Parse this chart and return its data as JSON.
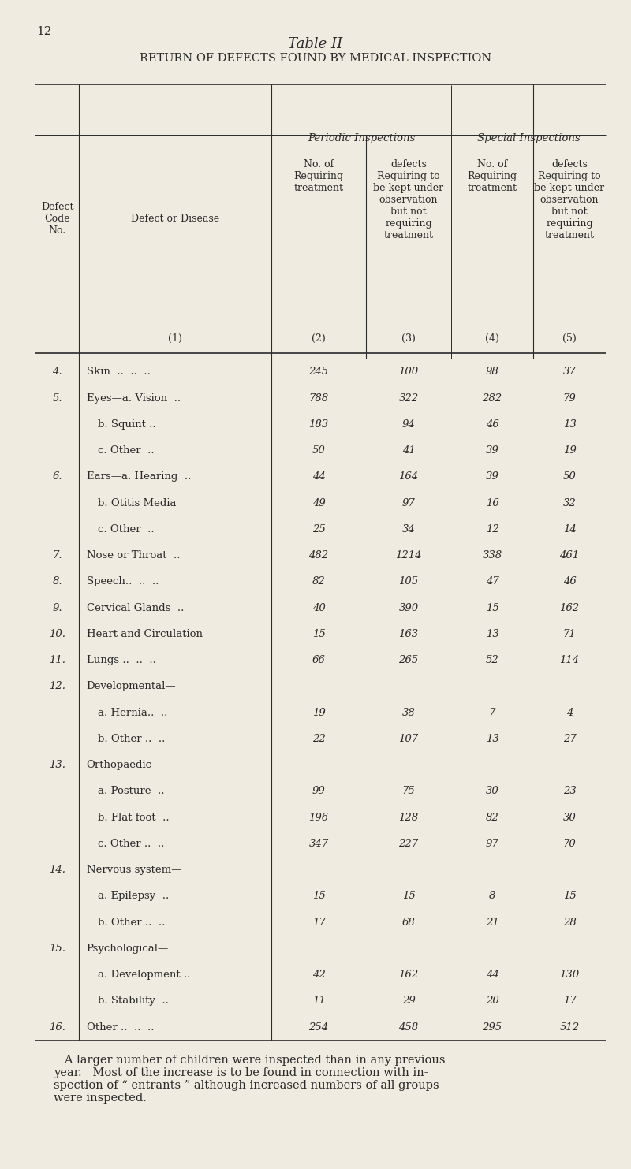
{
  "page_num": "12",
  "title1": "Table II",
  "title2": "Return of Defects Found by Medical Inspection",
  "bg_color": "#f0ebe0",
  "text_color": "#2a2a2a",
  "rows": [
    {
      "code": "4.",
      "disease": "Skin  ..  ..  ..",
      "indent": 0,
      "v2": "245",
      "v3": "100",
      "v4": "98",
      "v5": "37"
    },
    {
      "code": "5.",
      "disease": "Eyes—a. Vision  ..",
      "indent": 0,
      "v2": "788",
      "v3": "322",
      "v4": "282",
      "v5": "79"
    },
    {
      "code": "",
      "disease": "b. Squint ..",
      "indent": 1,
      "v2": "183",
      "v3": "94",
      "v4": "46",
      "v5": "13"
    },
    {
      "code": "",
      "disease": "c. Other  ..",
      "indent": 1,
      "v2": "50",
      "v3": "41",
      "v4": "39",
      "v5": "19"
    },
    {
      "code": "6.",
      "disease": "Ears—a. Hearing  ..",
      "indent": 0,
      "v2": "44",
      "v3": "164",
      "v4": "39",
      "v5": "50"
    },
    {
      "code": "",
      "disease": "b. Otitis Media",
      "indent": 1,
      "v2": "49",
      "v3": "97",
      "v4": "16",
      "v5": "32"
    },
    {
      "code": "",
      "disease": "c. Other  ..",
      "indent": 1,
      "v2": "25",
      "v3": "34",
      "v4": "12",
      "v5": "14"
    },
    {
      "code": "7.",
      "disease": "Nose or Throat  ..",
      "indent": 0,
      "v2": "482",
      "v3": "1214",
      "v4": "338",
      "v5": "461"
    },
    {
      "code": "8.",
      "disease": "Speech..  ..  ..",
      "indent": 0,
      "v2": "82",
      "v3": "105",
      "v4": "47",
      "v5": "46"
    },
    {
      "code": "9.",
      "disease": "Cervical Glands  ..",
      "indent": 0,
      "v2": "40",
      "v3": "390",
      "v4": "15",
      "v5": "162"
    },
    {
      "code": "10.",
      "disease": "Heart and Circulation",
      "indent": 0,
      "v2": "15",
      "v3": "163",
      "v4": "13",
      "v5": "71"
    },
    {
      "code": "11.",
      "disease": "Lungs ..  ..  ..",
      "indent": 0,
      "v2": "66",
      "v3": "265",
      "v4": "52",
      "v5": "114"
    },
    {
      "code": "12.",
      "disease": "Developmental—",
      "indent": 0,
      "v2": "",
      "v3": "",
      "v4": "",
      "v5": ""
    },
    {
      "code": "",
      "disease": "a. Hernia..  ..",
      "indent": 1,
      "v2": "19",
      "v3": "38",
      "v4": "7",
      "v5": "4"
    },
    {
      "code": "",
      "disease": "b. Other ..  ..",
      "indent": 1,
      "v2": "22",
      "v3": "107",
      "v4": "13",
      "v5": "27"
    },
    {
      "code": "13.",
      "disease": "Orthopaedic—",
      "indent": 0,
      "v2": "",
      "v3": "",
      "v4": "",
      "v5": ""
    },
    {
      "code": "",
      "disease": "a. Posture  ..",
      "indent": 1,
      "v2": "99",
      "v3": "75",
      "v4": "30",
      "v5": "23"
    },
    {
      "code": "",
      "disease": "b. Flat foot  ..",
      "indent": 1,
      "v2": "196",
      "v3": "128",
      "v4": "82",
      "v5": "30"
    },
    {
      "code": "",
      "disease": "c. Other ..  ..",
      "indent": 1,
      "v2": "347",
      "v3": "227",
      "v4": "97",
      "v5": "70"
    },
    {
      "code": "14.",
      "disease": "Nervous system—",
      "indent": 0,
      "v2": "",
      "v3": "",
      "v4": "",
      "v5": ""
    },
    {
      "code": "",
      "disease": "a. Epilepsy  ..",
      "indent": 1,
      "v2": "15",
      "v3": "15",
      "v4": "8",
      "v5": "15"
    },
    {
      "code": "",
      "disease": "b. Other ..  ..",
      "indent": 1,
      "v2": "17",
      "v3": "68",
      "v4": "21",
      "v5": "28"
    },
    {
      "code": "15.",
      "disease": "Psychological—",
      "indent": 0,
      "v2": "",
      "v3": "",
      "v4": "",
      "v5": ""
    },
    {
      "code": "",
      "disease": "a. Development ..",
      "indent": 1,
      "v2": "42",
      "v3": "162",
      "v4": "44",
      "v5": "130"
    },
    {
      "code": "",
      "disease": "b. Stability  ..",
      "indent": 1,
      "v2": "11",
      "v3": "29",
      "v4": "20",
      "v5": "17"
    },
    {
      "code": "16.",
      "disease": "Other ..  ..  ..",
      "indent": 0,
      "v2": "254",
      "v3": "458",
      "v4": "295",
      "v5": "512"
    }
  ],
  "footer": "   A larger number of children were inspected than in any previous\nyear.   Most of the increase is to be found in connection with in-\nspection of “ entrants ” although increased numbers of all groups\nwere inspected."
}
